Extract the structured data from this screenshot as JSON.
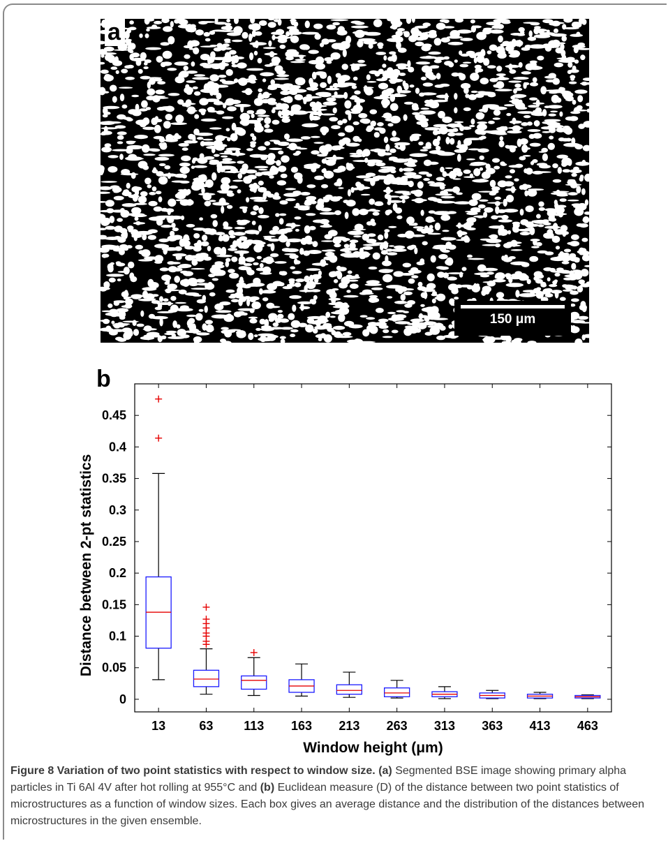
{
  "panel_a": {
    "label": "a",
    "scale_bar": "150 μm",
    "image_description_icon": "segmented-bse-micrograph"
  },
  "panel_b": {
    "label": "b"
  },
  "chart_data": {
    "type": "box",
    "ylabel": "Distance between 2-pt statistics",
    "xlabel": "Window height (μm)",
    "ylim": [
      -0.02,
      0.5
    ],
    "yticks": [
      0,
      0.05,
      0.1,
      0.15,
      0.2,
      0.25,
      0.3,
      0.35,
      0.4,
      0.45
    ],
    "ytick_labels": [
      "0",
      "0.05",
      "0.1",
      "0.15",
      "0.2",
      "0.25",
      "0.3",
      "0.35",
      "0.4",
      "0.45"
    ],
    "categories": [
      "13",
      "63",
      "113",
      "163",
      "213",
      "263",
      "313",
      "363",
      "413",
      "463"
    ],
    "boxes": [
      {
        "whisker_low": 0.031,
        "q1": 0.081,
        "median": 0.138,
        "q3": 0.194,
        "whisker_high": 0.358,
        "outliers": [
          0.414,
          0.476
        ]
      },
      {
        "whisker_low": 0.008,
        "q1": 0.02,
        "median": 0.032,
        "q3": 0.046,
        "whisker_high": 0.08,
        "outliers": [
          0.087,
          0.092,
          0.1,
          0.105,
          0.113,
          0.12,
          0.127,
          0.146
        ]
      },
      {
        "whisker_low": 0.006,
        "q1": 0.016,
        "median": 0.03,
        "q3": 0.037,
        "whisker_high": 0.066,
        "outliers": [
          0.074
        ]
      },
      {
        "whisker_low": 0.005,
        "q1": 0.011,
        "median": 0.021,
        "q3": 0.031,
        "whisker_high": 0.056,
        "outliers": []
      },
      {
        "whisker_low": 0.003,
        "q1": 0.008,
        "median": 0.014,
        "q3": 0.023,
        "whisker_high": 0.043,
        "outliers": []
      },
      {
        "whisker_low": 0.002,
        "q1": 0.004,
        "median": 0.01,
        "q3": 0.018,
        "whisker_high": 0.03,
        "outliers": []
      },
      {
        "whisker_low": 0.001,
        "q1": 0.004,
        "median": 0.008,
        "q3": 0.012,
        "whisker_high": 0.02,
        "outliers": []
      },
      {
        "whisker_low": 0.001,
        "q1": 0.002,
        "median": 0.006,
        "q3": 0.01,
        "whisker_high": 0.014,
        "outliers": []
      },
      {
        "whisker_low": 0.001,
        "q1": 0.002,
        "median": 0.005,
        "q3": 0.008,
        "whisker_high": 0.011,
        "outliers": []
      },
      {
        "whisker_low": 0.001,
        "q1": 0.002,
        "median": 0.004,
        "q3": 0.006,
        "whisker_high": 0.007,
        "outliers": []
      }
    ],
    "colors": {
      "box": "#1a1aff",
      "median": "#e60000",
      "outlier": "#e60000",
      "whisker": "#000000"
    },
    "grid": false
  },
  "caption": {
    "title": "Figure 8 Variation of two point statistics with respect to window size.",
    "part_a_tag": "(a)",
    "part_a_text": "Segmented BSE image showing primary alpha particles in Ti 6Al 4V after hot rolling at 955°C and",
    "part_b_tag": "(b)",
    "part_b_text": "Euclidean measure (D) of the distance between two point statistics of microstructures as a function of window sizes. Each box gives an average distance and the distribution of the distances between microstructures in the given ensemble."
  }
}
